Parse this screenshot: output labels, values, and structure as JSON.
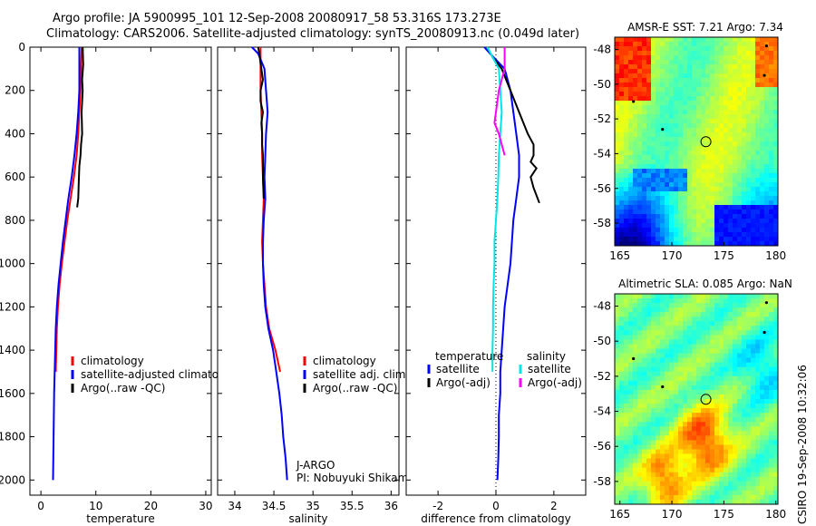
{
  "header": {
    "line1": "Argo profile: JA 5900995_101 12-Sep-2008 20080917_58 53.316S 173.273E",
    "line2": "Climatology: CARS2006. Satellite-adjusted climatology: synTS_20080913.nc (0.049d later)"
  },
  "side_label": "CSIRO 19-Sep-2008 10:32:06",
  "colors": {
    "red": "#ff0000",
    "blue": "#0000ff",
    "black": "#000000",
    "cyan": "#00e5e5",
    "magenta": "#ff00ff"
  },
  "chart_data": [
    {
      "type": "line",
      "id": "temperature",
      "xlabel": "temperature",
      "ylabel": "",
      "xlim": [
        -2,
        31
      ],
      "ylim": [
        2070,
        0
      ],
      "xticks": [
        0,
        10,
        20,
        30
      ],
      "yticks": [
        0,
        200,
        400,
        600,
        800,
        1000,
        1200,
        1400,
        1600,
        1800,
        2000
      ],
      "legend_position": "lower-right",
      "series": [
        {
          "name": "climatology",
          "color": "red",
          "points": [
            [
              7.4,
              0
            ],
            [
              7.3,
              100
            ],
            [
              7.2,
              200
            ],
            [
              7.0,
              300
            ],
            [
              6.8,
              400
            ],
            [
              6.5,
              500
            ],
            [
              6.0,
              600
            ],
            [
              5.4,
              700
            ],
            [
              4.8,
              800
            ],
            [
              4.3,
              900
            ],
            [
              3.8,
              1000
            ],
            [
              3.4,
              1100
            ],
            [
              3.1,
              1200
            ],
            [
              2.9,
              1300
            ],
            [
              2.8,
              1400
            ],
            [
              2.7,
              1500
            ]
          ]
        },
        {
          "name": "satellite-adjusted climatology",
          "color": "blue",
          "points": [
            [
              7.0,
              0
            ],
            [
              7.0,
              100
            ],
            [
              7.0,
              200
            ],
            [
              6.8,
              300
            ],
            [
              6.5,
              400
            ],
            [
              6.1,
              500
            ],
            [
              5.6,
              600
            ],
            [
              5.0,
              700
            ],
            [
              4.5,
              800
            ],
            [
              4.0,
              900
            ],
            [
              3.6,
              1000
            ],
            [
              3.2,
              1100
            ],
            [
              2.9,
              1200
            ],
            [
              2.7,
              1300
            ],
            [
              2.6,
              1400
            ],
            [
              2.5,
              1500
            ],
            [
              2.4,
              1600
            ],
            [
              2.35,
              1700
            ],
            [
              2.3,
              1800
            ],
            [
              2.25,
              1900
            ],
            [
              2.2,
              2000
            ]
          ]
        },
        {
          "name": "Argo(..raw -QC)",
          "color": "black",
          "points": [
            [
              7.6,
              0
            ],
            [
              7.7,
              80
            ],
            [
              7.5,
              150
            ],
            [
              7.6,
              200
            ],
            [
              7.4,
              300
            ],
            [
              7.5,
              400
            ],
            [
              7.3,
              450
            ],
            [
              7.2,
              500
            ],
            [
              7.0,
              550
            ],
            [
              6.9,
              620
            ],
            [
              6.8,
              700
            ],
            [
              6.6,
              740
            ]
          ]
        }
      ]
    },
    {
      "type": "line",
      "id": "salinity",
      "xlabel": "salinity",
      "ylabel": "",
      "xlim": [
        33.78,
        36.1
      ],
      "ylim": [
        2070,
        0
      ],
      "xticks": [
        34,
        34.5,
        35,
        35.5,
        36
      ],
      "legend_position": "lower-right",
      "annotation": [
        "J-ARGO",
        "PI: Nobuyuki Shikama"
      ],
      "series": [
        {
          "name": "climatology",
          "color": "red",
          "points": [
            [
              34.33,
              0
            ],
            [
              34.33,
              100
            ],
            [
              34.33,
              200
            ],
            [
              34.34,
              300
            ],
            [
              34.35,
              400
            ],
            [
              34.35,
              500
            ],
            [
              34.36,
              600
            ],
            [
              34.37,
              700
            ],
            [
              34.36,
              800
            ],
            [
              34.35,
              900
            ],
            [
              34.36,
              1000
            ],
            [
              34.38,
              1100
            ],
            [
              34.4,
              1200
            ],
            [
              34.44,
              1300
            ],
            [
              34.52,
              1400
            ],
            [
              34.58,
              1500
            ]
          ]
        },
        {
          "name": "satellite adj. clim.",
          "color": "blue",
          "points": [
            [
              34.22,
              0
            ],
            [
              34.3,
              30
            ],
            [
              34.38,
              100
            ],
            [
              34.4,
              200
            ],
            [
              34.42,
              300
            ],
            [
              34.4,
              400
            ],
            [
              34.39,
              500
            ],
            [
              34.38,
              600
            ],
            [
              34.39,
              700
            ],
            [
              34.37,
              800
            ],
            [
              34.36,
              900
            ],
            [
              34.36,
              1000
            ],
            [
              34.37,
              1100
            ],
            [
              34.39,
              1200
            ],
            [
              34.43,
              1300
            ],
            [
              34.49,
              1400
            ],
            [
              34.53,
              1500
            ],
            [
              34.57,
              1600
            ],
            [
              34.6,
              1700
            ],
            [
              34.62,
              1800
            ],
            [
              34.65,
              1900
            ],
            [
              34.67,
              2000
            ]
          ]
        },
        {
          "name": "Argo(..raw -QC)",
          "color": "black",
          "points": [
            [
              34.3,
              0
            ],
            [
              34.32,
              50
            ],
            [
              34.34,
              100
            ],
            [
              34.36,
              150
            ],
            [
              34.33,
              200
            ],
            [
              34.33,
              250
            ],
            [
              34.36,
              300
            ],
            [
              34.34,
              350
            ],
            [
              34.35,
              400
            ],
            [
              34.35,
              450
            ],
            [
              34.36,
              500
            ],
            [
              34.36,
              600
            ],
            [
              34.37,
              700
            ]
          ]
        }
      ]
    },
    {
      "type": "line",
      "id": "difference",
      "xlabel": "difference from climatology",
      "ylabel": "",
      "xlim": [
        -3.1,
        3.1
      ],
      "ylim": [
        2070,
        0
      ],
      "xticks": [
        -2,
        0,
        2
      ],
      "zero_line": true,
      "legend_position": "lower-right",
      "legend_headers": [
        "temperature",
        "salinity"
      ],
      "series": [
        {
          "name": "satellite",
          "group": "temperature",
          "color": "blue",
          "points": [
            [
              -0.4,
              0
            ],
            [
              -0.2,
              30
            ],
            [
              0.3,
              100
            ],
            [
              0.5,
              200
            ],
            [
              0.6,
              300
            ],
            [
              0.7,
              400
            ],
            [
              0.8,
              500
            ],
            [
              0.8,
              600
            ],
            [
              0.7,
              700
            ],
            [
              0.6,
              800
            ],
            [
              0.55,
              900
            ],
            [
              0.5,
              1000
            ],
            [
              0.4,
              1100
            ],
            [
              0.3,
              1200
            ],
            [
              0.25,
              1300
            ],
            [
              0.2,
              1400
            ],
            [
              0.15,
              1500
            ],
            [
              0.15,
              1600
            ],
            [
              0.1,
              1700
            ],
            [
              0.1,
              1800
            ],
            [
              0.08,
              1900
            ],
            [
              0.05,
              2000
            ]
          ]
        },
        {
          "name": "Argo(-adj)",
          "group": "temperature",
          "color": "black",
          "points": [
            [
              -0.3,
              0
            ],
            [
              -0.1,
              50
            ],
            [
              0.2,
              100
            ],
            [
              0.5,
              200
            ],
            [
              0.8,
              300
            ],
            [
              1.1,
              400
            ],
            [
              1.3,
              450
            ],
            [
              1.3,
              500
            ],
            [
              1.2,
              530
            ],
            [
              1.4,
              560
            ],
            [
              1.2,
              600
            ],
            [
              1.3,
              650
            ],
            [
              1.5,
              720
            ]
          ]
        },
        {
          "name": "satellite",
          "group": "salinity",
          "color": "cyan",
          "points": [
            [
              -0.3,
              0
            ],
            [
              -0.1,
              50
            ],
            [
              0.1,
              100
            ],
            [
              0.15,
              200
            ],
            [
              0.2,
              300
            ],
            [
              0.15,
              400
            ],
            [
              0.1,
              500
            ],
            [
              0.08,
              600
            ],
            [
              0.05,
              700
            ],
            [
              0.0,
              800
            ],
            [
              -0.05,
              900
            ],
            [
              -0.05,
              1000
            ],
            [
              -0.08,
              1100
            ],
            [
              -0.1,
              1200
            ],
            [
              -0.1,
              1300
            ],
            [
              -0.12,
              1400
            ],
            [
              -0.12,
              1500
            ]
          ]
        },
        {
          "name": "Argo(-adj)",
          "group": "salinity",
          "color": "magenta",
          "points": [
            [
              0.3,
              0
            ],
            [
              0.3,
              100
            ],
            [
              0.1,
              200
            ],
            [
              0.0,
              300
            ],
            [
              -0.05,
              350
            ],
            [
              0.1,
              400
            ],
            [
              0.2,
              450
            ],
            [
              0.3,
              500
            ]
          ]
        }
      ]
    },
    {
      "type": "heatmap",
      "id": "amsre-sst",
      "title": "AMSR-E SST: 7.21 Argo: 7.34",
      "xlim": [
        164.5,
        180.2
      ],
      "ylim": [
        -59.3,
        -47.3
      ],
      "xticks": [
        165,
        170,
        175,
        180
      ],
      "yticks": [
        -48,
        -50,
        -52,
        -54,
        -56,
        -58
      ],
      "marker": {
        "lon": 173.273,
        "lat": -53.316
      },
      "dots": [
        [
          166.3,
          -51.0
        ],
        [
          169.1,
          -52.6
        ],
        [
          178.9,
          -49.5
        ],
        [
          179.1,
          -47.8
        ]
      ]
    },
    {
      "type": "heatmap",
      "id": "altimetric-sla",
      "title": "Altimetric SLA: 0.085 Argo: NaN",
      "xlim": [
        164.5,
        180.2
      ],
      "ylim": [
        -59.3,
        -47.3
      ],
      "xticks": [
        165,
        170,
        175,
        180
      ],
      "yticks": [
        -48,
        -50,
        -52,
        -54,
        -56,
        -58
      ],
      "marker": {
        "lon": 173.273,
        "lat": -53.316
      },
      "dots": [
        [
          166.3,
          -51.0
        ],
        [
          169.1,
          -52.6
        ],
        [
          178.9,
          -49.5
        ],
        [
          179.1,
          -47.8
        ]
      ]
    }
  ]
}
